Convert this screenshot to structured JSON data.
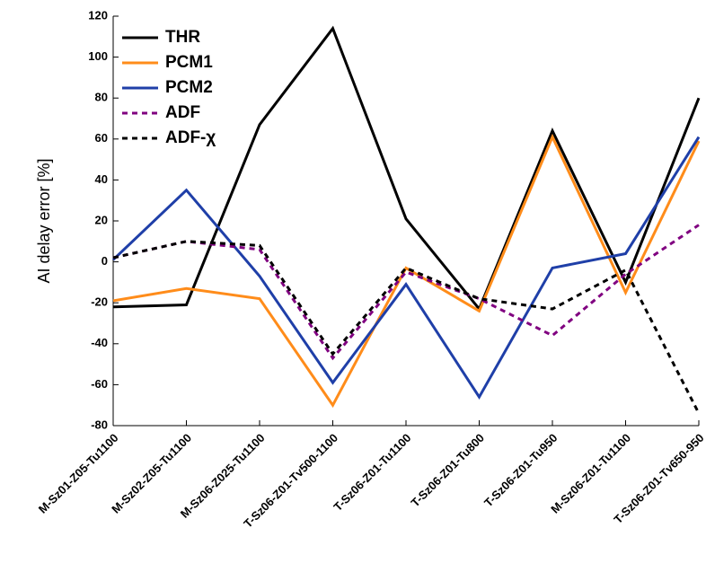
{
  "chart_data": {
    "type": "line",
    "y_label": "AI delay error [%]",
    "categories": [
      "M-Sz01-Z05-Tu1100",
      "M-Sz02-Z05-Tu1100",
      "M-Sz06-Z025-Tu1100",
      "T-Sz06-Z01-Tv500-1100",
      "T-Sz06-Z01-Tu1100",
      "T-Sz06-Z01-Tu800",
      "T-Sz06-Z01-Tu950",
      "M-Sz06-Z01-Tu1100",
      "T-Sz06-Z01-Tv650-950"
    ],
    "series": [
      {
        "name": "THR",
        "color": "#000000",
        "style": "solid",
        "values": [
          -22,
          -21,
          67,
          114,
          21,
          -23,
          64,
          -10,
          80
        ]
      },
      {
        "name": "PCM1",
        "color": "#ff8c1a",
        "style": "solid",
        "values": [
          -19,
          -13,
          -18,
          -70,
          -3,
          -24,
          61,
          -15,
          59
        ]
      },
      {
        "name": "PCM2",
        "color": "#1f3fa8",
        "style": "solid",
        "values": [
          1,
          35,
          -7,
          -59,
          -11,
          -66,
          -3,
          4,
          61
        ]
      },
      {
        "name": "ADF",
        "color": "#800080",
        "style": "dashed",
        "values": [
          2,
          10,
          6,
          -47,
          -5,
          -18,
          -36,
          -6,
          18
        ]
      },
      {
        "name": "ADF-χ",
        "color": "#000000",
        "style": "dashed",
        "values": [
          2,
          10,
          8,
          -45,
          -3,
          -18,
          -23,
          -4,
          -74
        ]
      }
    ],
    "ylim": [
      -80,
      120
    ],
    "yticks": [
      -80,
      -60,
      -40,
      -20,
      0,
      20,
      40,
      60,
      80,
      100,
      120
    ],
    "grid": false,
    "legend": "upper-left"
  }
}
